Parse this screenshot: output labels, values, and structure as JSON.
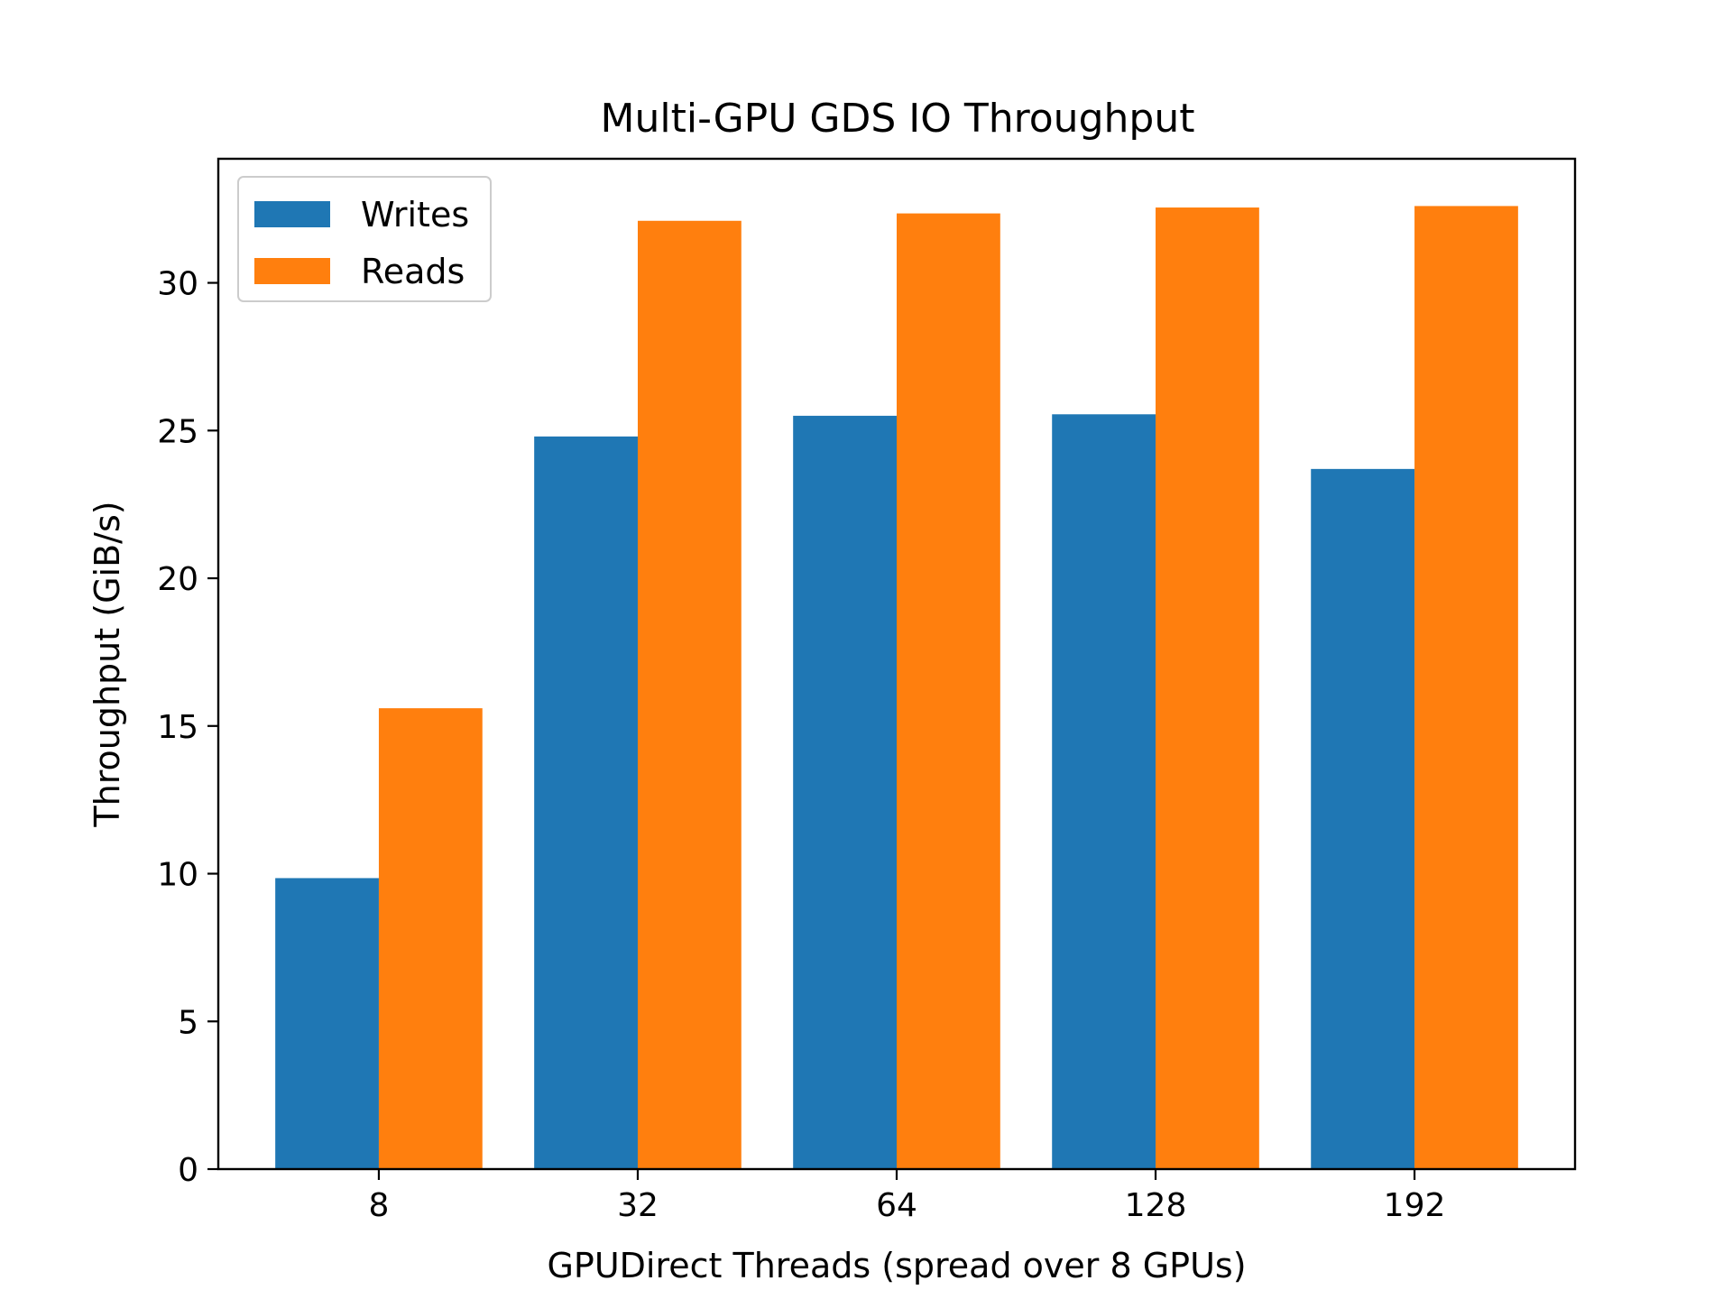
{
  "chart_data": {
    "type": "bar",
    "title": "Multi-GPU GDS IO Throughput",
    "xlabel": "GPUDirect Threads (spread over 8 GPUs)",
    "ylabel": "Throughput (GiB/s)",
    "categories": [
      "8",
      "32",
      "64",
      "128",
      "192"
    ],
    "series": [
      {
        "name": "Writes",
        "color": "#1f77b4",
        "values": [
          9.85,
          24.8,
          25.5,
          25.55,
          23.7
        ]
      },
      {
        "name": "Reads",
        "color": "#ff7f0e",
        "values": [
          15.6,
          32.1,
          32.35,
          32.55,
          32.6
        ]
      }
    ],
    "ylim": [
      0,
      34.2
    ],
    "yticks": [
      0,
      5,
      10,
      15,
      20,
      25,
      30
    ],
    "grid": false,
    "legend_position": "top-left"
  }
}
